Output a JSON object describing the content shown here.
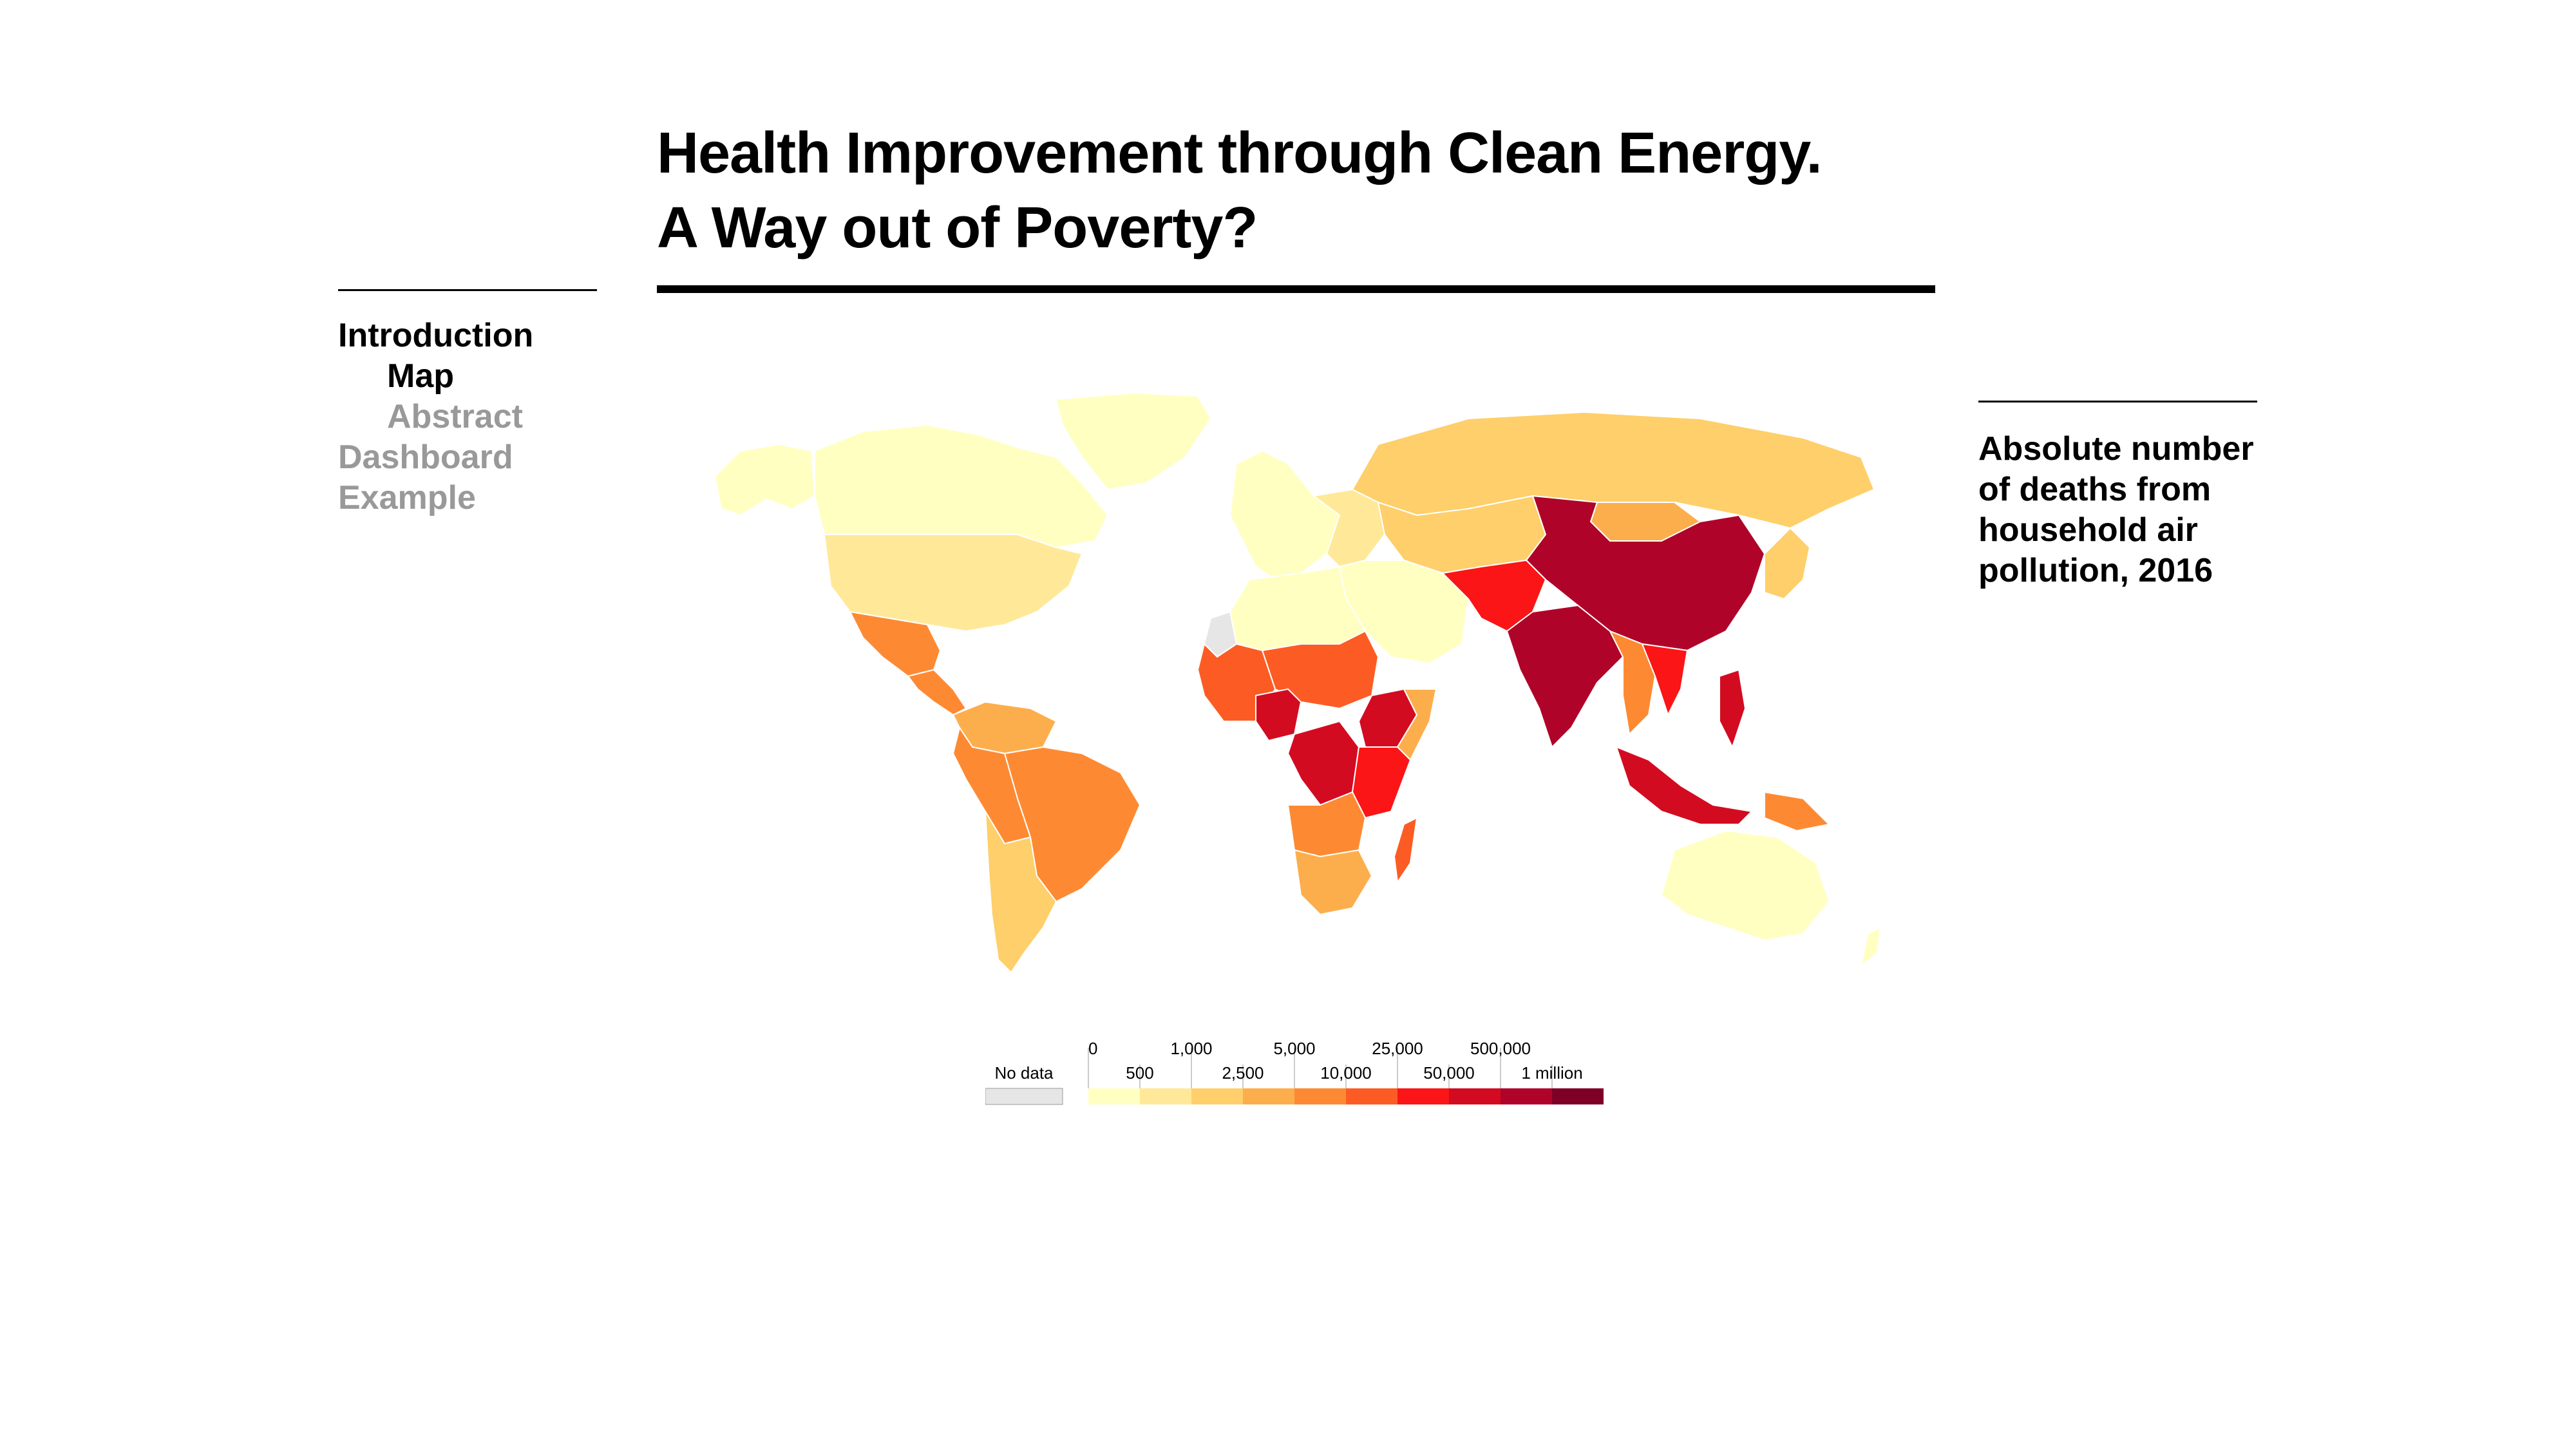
{
  "title": {
    "line1": "Health Improvement through Clean Energy.",
    "line2": "A Way out of Poverty?"
  },
  "nav": {
    "items": [
      {
        "label": "Introduction",
        "state": "active",
        "level": 0
      },
      {
        "label": "Map",
        "state": "active",
        "level": 1
      },
      {
        "label": "Abstract",
        "state": "inactive",
        "level": 1
      },
      {
        "label": "Dashboard",
        "state": "inactive",
        "level": 0
      },
      {
        "label": "Example",
        "state": "inactive",
        "level": 0
      }
    ]
  },
  "map_caption": "Absolute number of deaths from household air pollution, 2016",
  "legend": {
    "no_data_label": "No data",
    "no_data_color": "#e6e6e6",
    "top_labels": [
      "0",
      "1,000",
      "5,000",
      "25,000",
      "500,000"
    ],
    "bottom_labels": [
      "500",
      "2,500",
      "10,000",
      "50,000",
      "1 million"
    ],
    "colors": [
      "#ffffc2",
      "#ffe999",
      "#fecf6a",
      "#fdae4c",
      "#fd8a33",
      "#fc5c24",
      "#fb1516",
      "#d30b21",
      "#b00329",
      "#7e0026"
    ]
  },
  "colors": {
    "c1": "#ffffc2",
    "c2": "#ffe999",
    "c3": "#fecf6a",
    "c4": "#fdae4c",
    "c5": "#fd8a33",
    "c6": "#fc5c24",
    "c7": "#fb1516",
    "c8": "#d30b21",
    "c9": "#b00329",
    "c10": "#7e0026",
    "nodata": "#e6e6e6"
  },
  "regions": [
    {
      "id": "canada",
      "color": "c1"
    },
    {
      "id": "alaska",
      "color": "c1"
    },
    {
      "id": "greenland",
      "color": "c1"
    },
    {
      "id": "usa",
      "color": "c2"
    },
    {
      "id": "mexico",
      "color": "c5"
    },
    {
      "id": "central-america",
      "color": "c5"
    },
    {
      "id": "colombia-venezuela",
      "color": "c4"
    },
    {
      "id": "brazil",
      "color": "c5"
    },
    {
      "id": "peru-bolivia",
      "color": "c5"
    },
    {
      "id": "argentina-chile",
      "color": "c3"
    },
    {
      "id": "western-europe",
      "color": "c1"
    },
    {
      "id": "eastern-europe",
      "color": "c2"
    },
    {
      "id": "russia",
      "color": "c3"
    },
    {
      "id": "central-asia",
      "color": "c3"
    },
    {
      "id": "north-africa",
      "color": "c1"
    },
    {
      "id": "middle-east",
      "color": "c1"
    },
    {
      "id": "west-africa",
      "color": "c6"
    },
    {
      "id": "nigeria",
      "color": "c8"
    },
    {
      "id": "sahel-sudan",
      "color": "c6"
    },
    {
      "id": "ethiopia",
      "color": "c8"
    },
    {
      "id": "horn-somalia",
      "color": "c4"
    },
    {
      "id": "dr-congo",
      "color": "c8"
    },
    {
      "id": "east-africa",
      "color": "c7"
    },
    {
      "id": "angola-zambia",
      "color": "c5"
    },
    {
      "id": "southern-africa",
      "color": "c4"
    },
    {
      "id": "madagascar",
      "color": "c6"
    },
    {
      "id": "pakistan-afghanistan",
      "color": "c7"
    },
    {
      "id": "india",
      "color": "c9"
    },
    {
      "id": "china",
      "color": "c9"
    },
    {
      "id": "mongolia",
      "color": "c4"
    },
    {
      "id": "southeast-asia",
      "color": "c7"
    },
    {
      "id": "myanmar-thailand",
      "color": "c5"
    },
    {
      "id": "indonesia",
      "color": "c8"
    },
    {
      "id": "philippines",
      "color": "c8"
    },
    {
      "id": "papua",
      "color": "c5"
    },
    {
      "id": "japan-korea",
      "color": "c3"
    },
    {
      "id": "australia",
      "color": "c1"
    },
    {
      "id": "new-zealand",
      "color": "c1"
    },
    {
      "id": "western-sahara",
      "color": "nodata"
    }
  ]
}
